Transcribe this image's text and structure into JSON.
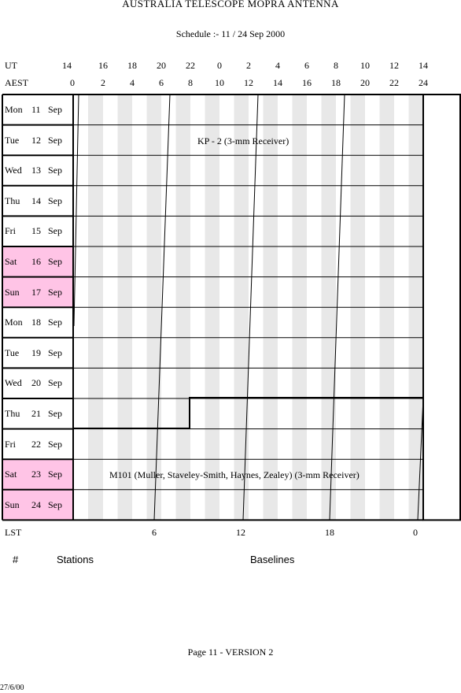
{
  "title": "AUSTRALIA TELESCOPE MOPRA ANTENNA",
  "subtitle": "Schedule :- 11 / 24 Sep 2000",
  "ut_label": "UT",
  "aest_label": "AEST",
  "lst_label": "LST",
  "ut_ticks": [
    "14",
    "16",
    "18",
    "20",
    "22",
    "0",
    "2",
    "4",
    "6",
    "8",
    "10",
    "12",
    "14"
  ],
  "aest_ticks": [
    "0",
    "2",
    "4",
    "6",
    "8",
    "10",
    "12",
    "14",
    "16",
    "18",
    "20",
    "22",
    "24"
  ],
  "lst_ticks": [
    "6",
    "12",
    "18",
    "0"
  ],
  "days": [
    {
      "dow": "Mon",
      "date": "11",
      "month": "Sep",
      "weekend": false
    },
    {
      "dow": "Tue",
      "date": "12",
      "month": "Sep",
      "weekend": false
    },
    {
      "dow": "Wed",
      "date": "13",
      "month": "Sep",
      "weekend": false
    },
    {
      "dow": "Thu",
      "date": "14",
      "month": "Sep",
      "weekend": false
    },
    {
      "dow": "Fri",
      "date": "15",
      "month": "Sep",
      "weekend": false
    },
    {
      "dow": "Sat",
      "date": "16",
      "month": "Sep",
      "weekend": true
    },
    {
      "dow": "Sun",
      "date": "17",
      "month": "Sep",
      "weekend": true
    },
    {
      "dow": "Mon",
      "date": "18",
      "month": "Sep",
      "weekend": false
    },
    {
      "dow": "Tue",
      "date": "19",
      "month": "Sep",
      "weekend": false
    },
    {
      "dow": "Wed",
      "date": "20",
      "month": "Sep",
      "weekend": false
    },
    {
      "dow": "Thu",
      "date": "21",
      "month": "Sep",
      "weekend": false
    },
    {
      "dow": "Fri",
      "date": "22",
      "month": "Sep",
      "weekend": false
    },
    {
      "dow": "Sat",
      "date": "23",
      "month": "Sep",
      "weekend": true
    },
    {
      "dow": "Sun",
      "date": "24",
      "month": "Sep",
      "weekend": true
    }
  ],
  "programs": [
    {
      "label": "KP - 2 (3-mm Receiver)"
    },
    {
      "label": "M101 (Muller, Staveley-Smith, Haynes, Zealey) (3-mm Receiver)"
    }
  ],
  "footer": {
    "hash": "#",
    "stations": "Stations",
    "baselines": "Baselines",
    "page": "Page 11 - VERSION 2",
    "date": "27/6/00"
  },
  "colors": {
    "weekend": "#ffc4e6",
    "stripe": "#e8e8e8"
  }
}
